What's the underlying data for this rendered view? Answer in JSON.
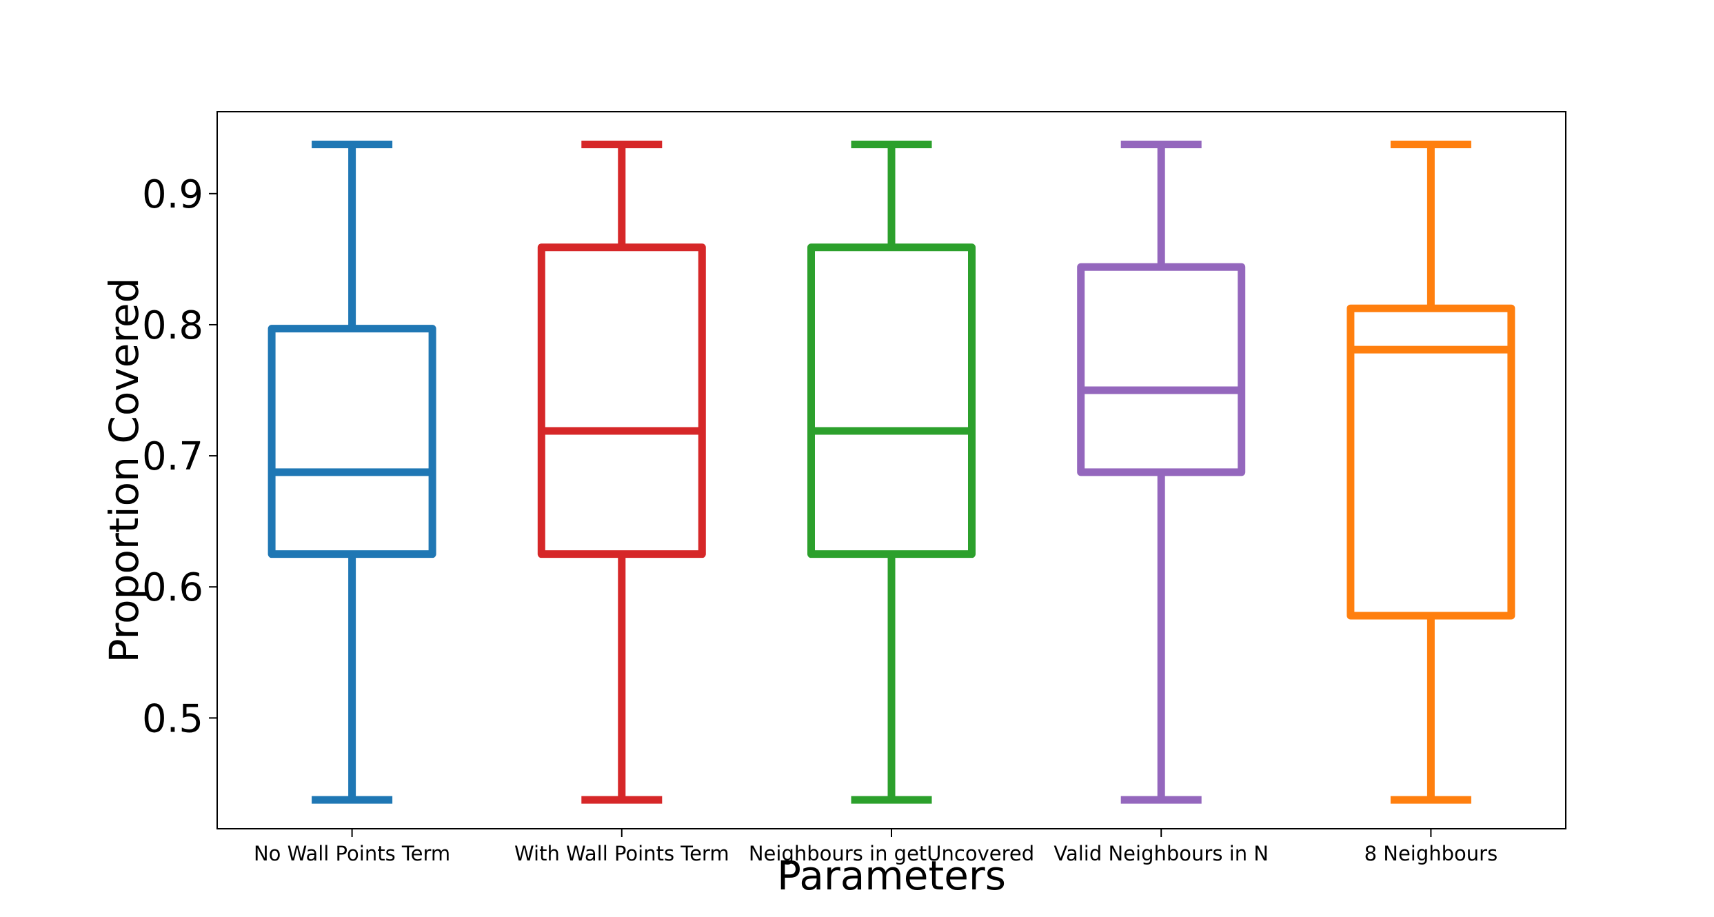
{
  "chart_data": {
    "type": "box",
    "title": "",
    "xlabel": "Parameters",
    "ylabel": "Proportion Covered",
    "ylim": [
      0.4155,
      0.9625
    ],
    "yticks": [
      0.5,
      0.6,
      0.7,
      0.8,
      0.9
    ],
    "ytick_labels": [
      "0.5",
      "0.6",
      "0.7",
      "0.8",
      "0.9"
    ],
    "grid": false,
    "legend": "none",
    "categories": [
      "No Wall Points Term",
      "With Wall Points Term",
      "Neighbours in getUncovered",
      "Valid Neighbours in N",
      "8 Neighbours"
    ],
    "boxes": [
      {
        "whisker_low": 0.4375,
        "q1": 0.625,
        "median": 0.6875,
        "q3": 0.797,
        "whisker_high": 0.9375,
        "color": "#1f77b4"
      },
      {
        "whisker_low": 0.4375,
        "q1": 0.625,
        "median": 0.719,
        "q3": 0.859,
        "whisker_high": 0.9375,
        "color": "#d62728"
      },
      {
        "whisker_low": 0.4375,
        "q1": 0.625,
        "median": 0.719,
        "q3": 0.859,
        "whisker_high": 0.9375,
        "color": "#2ca02c"
      },
      {
        "whisker_low": 0.4375,
        "q1": 0.6875,
        "median": 0.75,
        "q3": 0.844,
        "whisker_high": 0.9375,
        "color": "#9467bd"
      },
      {
        "whisker_low": 0.4375,
        "q1": 0.578,
        "median": 0.781,
        "q3": 0.8125,
        "whisker_high": 0.9375,
        "color": "#ff7f0e"
      }
    ]
  }
}
